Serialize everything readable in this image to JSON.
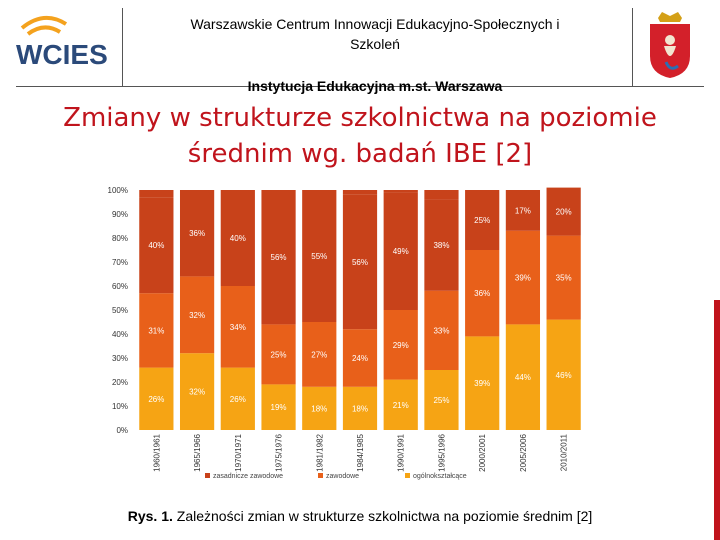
{
  "header": {
    "logo_text": "WCIES",
    "org_line1": "Warszawskie Centrum Innowacji Edukacyjno-Społecznych i",
    "org_line2": "Szkoleń",
    "institution": "Instytucja Edukacyjna m.st. Warszawa"
  },
  "slide": {
    "title_line1": "Zmiany w strukturze szkolnictwa na poziomie",
    "title_line2": "średnim wg. badań IBE [2]"
  },
  "caption": {
    "prefix": "Rys. 1.",
    "text": "Zależności zmian w strukturze szkolnictwa na poziomie średnim [2]"
  },
  "chart_data": {
    "type": "bar",
    "stacked": true,
    "categories": [
      "1960/1961",
      "1965/1966",
      "1970/1971",
      "1975/1976",
      "1981/1982",
      "1984/1985",
      "1990/1991",
      "1995/1996",
      "2000/2001",
      "2005/2006",
      "2010/2011"
    ],
    "series": [
      {
        "name": "ogólnokształcące",
        "color": "#f6a414",
        "values": [
          26,
          32,
          26,
          19,
          18,
          18,
          21,
          25,
          39,
          44,
          46
        ]
      },
      {
        "name": "zawodowe",
        "color": "#e8601a",
        "values": [
          31,
          32,
          34,
          25,
          27,
          24,
          29,
          33,
          36,
          39,
          35
        ]
      },
      {
        "name": "zasadnicze zawodowe",
        "color": "#c8421a",
        "values": [
          40,
          36,
          40,
          56,
          55,
          56,
          49,
          38,
          25,
          17,
          20
        ]
      }
    ],
    "y_ticks": [
      "0%",
      "10%",
      "20%",
      "30%",
      "40%",
      "50%",
      "60%",
      "70%",
      "80%",
      "90%",
      "100%"
    ],
    "ylim": [
      0,
      100
    ],
    "legend_labels": [
      "zasadnicze zawodowe",
      "zawodowe",
      "ogólnokształcące"
    ],
    "legend_position": "bottom",
    "grid": false
  }
}
